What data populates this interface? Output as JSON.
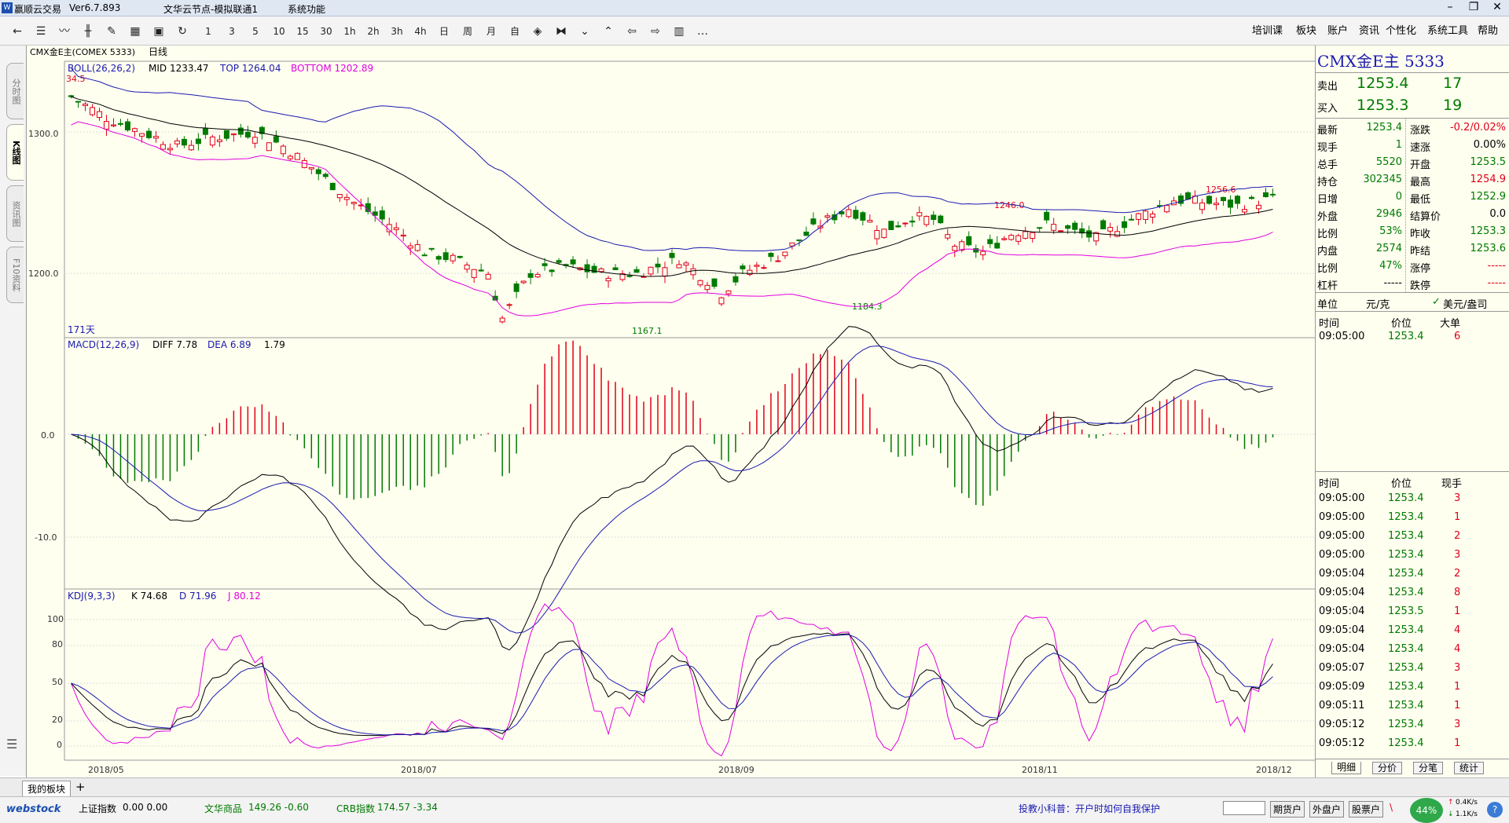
{
  "titlebar": {
    "app": "赢顺云交易",
    "version": "Ver6.7.893",
    "node": "文华云节点-模拟联通1",
    "menu": "系统功能"
  },
  "toolbar": {
    "periods": [
      "1",
      "3",
      "5",
      "10",
      "15",
      "30",
      "1h",
      "2h",
      "3h",
      "4h",
      "日",
      "周",
      "月",
      "自"
    ],
    "menus": [
      "培训课",
      "板块",
      "账户",
      "资讯",
      "个性化",
      "系统工具",
      "帮助"
    ]
  },
  "sidetabs": [
    "分时图",
    "K线图",
    "资讯图",
    "F10资料"
  ],
  "chart": {
    "instrument": "CMX金E主(COMEX 5333)",
    "period": "日线",
    "boll": {
      "label": "BOLL(26,26,2)",
      "mid": "MID 1233.47",
      "top": "TOP 1264.04",
      "bottom": "BOTTOM 1202.89"
    },
    "macd": {
      "label": "MACD(12,26,9)",
      "diff": "DIFF 7.78",
      "dea": "DEA 6.89",
      "macd": "1.79"
    },
    "kdj": {
      "label": "KDJ(9,3,3)",
      "k": "K 74.68",
      "d": "D 71.96",
      "j": "J 80.12"
    },
    "days": "171天",
    "price_ticks": [
      "1300.0",
      "1200.0"
    ],
    "macd_ticks": [
      "0.0",
      "-10.0"
    ],
    "kdj_ticks": [
      "100",
      "80",
      "50",
      "20",
      "0"
    ],
    "date_ticks": [
      "2018/05",
      "2018/07",
      "2018/09",
      "2018/11",
      "2018/12"
    ],
    "annotations": [
      "1246.0",
      "1256.6",
      "1184.3",
      "1167.1",
      "34.5"
    ]
  },
  "quote": {
    "title": "CMX金E主 5333",
    "sell_label": "卖出",
    "sell_price": "1253.4",
    "sell_vol": "17",
    "buy_label": "买入",
    "buy_price": "1253.3",
    "buy_vol": "19",
    "left": [
      [
        "最新",
        "1253.4"
      ],
      [
        "现手",
        "1"
      ],
      [
        "总手",
        "5520"
      ],
      [
        "持仓",
        "302345"
      ],
      [
        "日增",
        "0"
      ],
      [
        "外盘",
        "2946"
      ],
      [
        "比例",
        "53%"
      ],
      [
        "内盘",
        "2574"
      ],
      [
        "比例",
        "47%"
      ],
      [
        "杠杆",
        "-----"
      ]
    ],
    "right": [
      [
        "涨跌",
        "-0.2/0.02%"
      ],
      [
        "速涨",
        "0.00%"
      ],
      [
        "开盘",
        "1253.5"
      ],
      [
        "最高",
        "1254.9"
      ],
      [
        "最低",
        "1252.9"
      ],
      [
        "结算价",
        "0.0"
      ],
      [
        "昨收",
        "1253.3"
      ],
      [
        "昨结",
        "1253.6"
      ],
      [
        "涨停",
        "-----"
      ],
      [
        "跌停",
        "-----"
      ]
    ],
    "unit_label": "单位",
    "unit": "元/克",
    "currency": "美元/盎司",
    "big_header": [
      "时间",
      "价位",
      "大单"
    ],
    "big_row": [
      "09:05:00",
      "1253.4",
      "6"
    ],
    "ticks_header": [
      "时间",
      "价位",
      "现手"
    ],
    "ticks": [
      [
        "09:05:00",
        "1253.4",
        "3"
      ],
      [
        "09:05:00",
        "1253.4",
        "1"
      ],
      [
        "09:05:00",
        "1253.4",
        "2"
      ],
      [
        "09:05:00",
        "1253.4",
        "3"
      ],
      [
        "09:05:04",
        "1253.4",
        "2"
      ],
      [
        "09:05:04",
        "1253.4",
        "8"
      ],
      [
        "09:05:04",
        "1253.5",
        "1"
      ],
      [
        "09:05:04",
        "1253.4",
        "4"
      ],
      [
        "09:05:04",
        "1253.4",
        "4"
      ],
      [
        "09:05:07",
        "1253.4",
        "3"
      ],
      [
        "09:05:09",
        "1253.4",
        "1"
      ],
      [
        "09:05:11",
        "1253.4",
        "1"
      ],
      [
        "09:05:12",
        "1253.4",
        "3"
      ],
      [
        "09:05:12",
        "1253.4",
        "1"
      ]
    ],
    "tabs": [
      "明细",
      "分价",
      "分笔",
      "统计"
    ]
  },
  "bottom": {
    "block_tab": "我的板块",
    "add": "+"
  },
  "status": {
    "logo": "webstock",
    "idx1_name": "上证指数",
    "idx1_val": "0.00  0.00",
    "idx2_name": "文华商品",
    "idx2_val": "149.26  -0.60",
    "idx3_name": "CRB指数",
    "idx3_val": "174.57  -3.34",
    "tip": "投教小科普：开户时如何自我保护",
    "btns": [
      "期货户",
      "外盘户",
      "股票户"
    ],
    "speed": "44%",
    "up": "0.4K/s",
    "down": "1.1K/s"
  },
  "colors": {
    "up": "#e0001a",
    "down": "#007a00",
    "mid": "#000000",
    "top": "#1a1ab0",
    "bottom": "#e000e0",
    "bg": "#fffff0"
  }
}
